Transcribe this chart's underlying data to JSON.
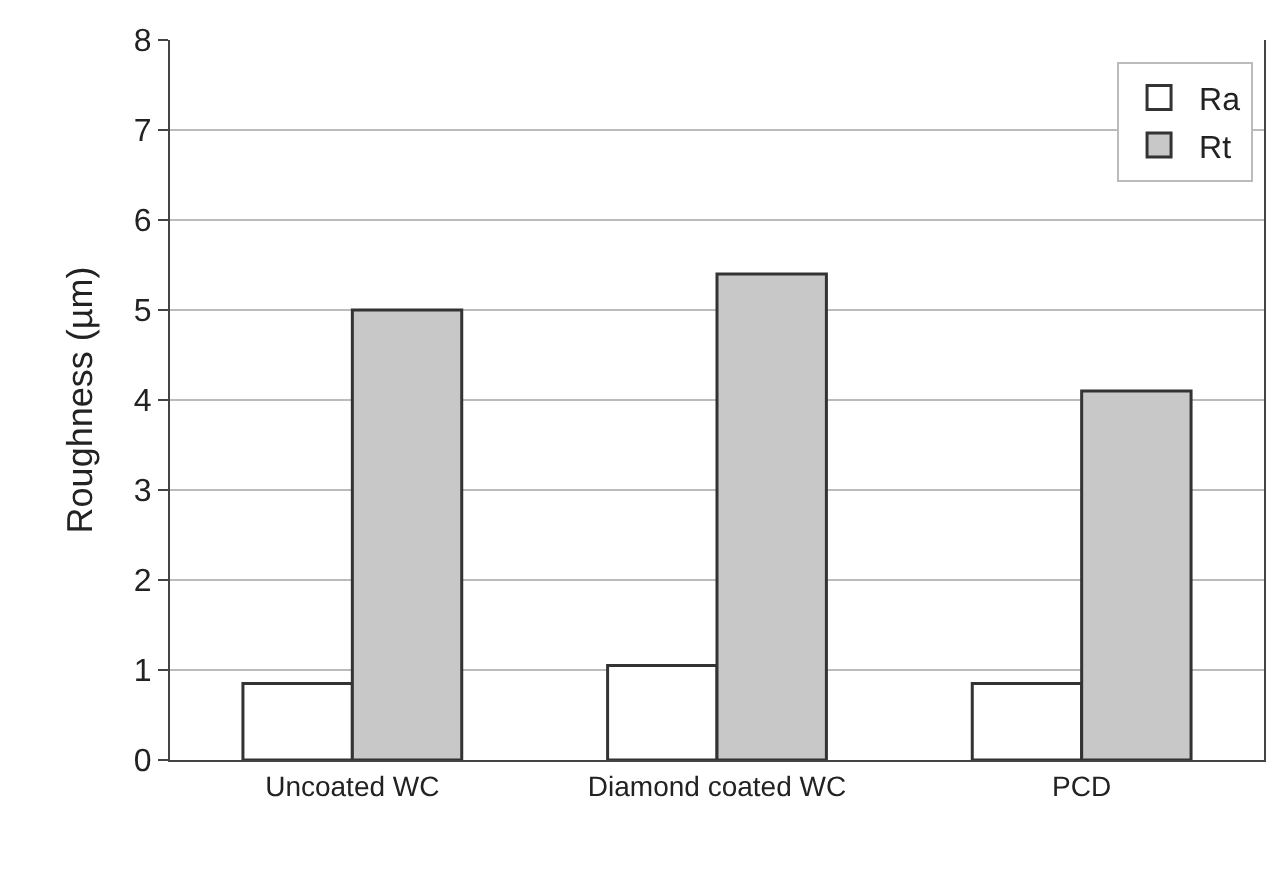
{
  "chart_data": {
    "type": "bar",
    "ylabel": "Roughness (µm)",
    "categories": [
      "Uncoated WC",
      "Diamond coated WC",
      "PCD"
    ],
    "series": [
      {
        "name": "Ra",
        "color": "#ffffff",
        "values": [
          0.85,
          1.05,
          0.85
        ]
      },
      {
        "name": "Rt",
        "color": "#c8c8c8",
        "values": [
          5.0,
          5.4,
          4.1
        ]
      }
    ],
    "ylim": [
      0,
      8
    ],
    "yticks": [
      0,
      1,
      2,
      3,
      4,
      5,
      6,
      7,
      8
    ],
    "grid": "y",
    "legend": "top right"
  }
}
